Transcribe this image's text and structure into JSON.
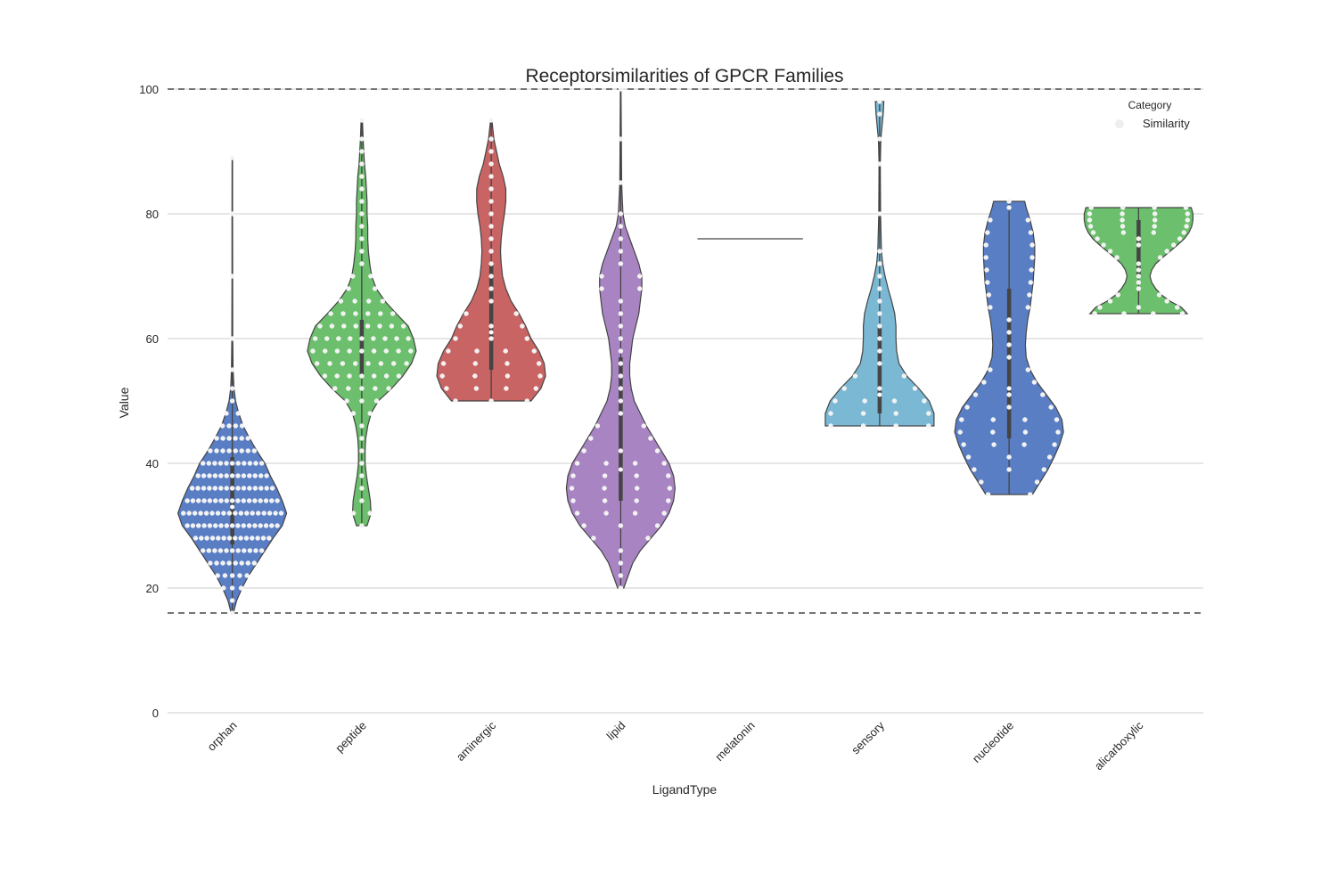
{
  "chart_data": {
    "type": "violin",
    "title": "Receptorsimilarities of GPCR Families",
    "xlabel": "LigandType",
    "ylabel": "Value",
    "ylim": [
      0,
      100
    ],
    "yticks": [
      "0",
      "20",
      "40",
      "60",
      "80",
      "100"
    ],
    "grid": true,
    "reference_lines": [
      100,
      16
    ],
    "legend": {
      "title": "Category",
      "entries": [
        "Similarity"
      ],
      "placement": "top-right"
    },
    "categories": [
      "orphan",
      "peptide",
      "aminergic",
      "lipid",
      "melatonin",
      "sensory",
      "nucleotide",
      "alicarboxylic"
    ],
    "colors": [
      "#4c72b0",
      "#55a868",
      "#c44e52",
      "#8172b2",
      "#4c72b0",
      "#64b5cd",
      "#4c72b0",
      "#55a868"
    ],
    "fill_colors": [
      "#5a7ec4",
      "#6cbf6c",
      "#c96464",
      "#a884c2",
      "#5a7ec4",
      "#7ab8d4",
      "#5a7ec4",
      "#6cbf6c"
    ],
    "series": [
      {
        "category": "orphan",
        "min": 16,
        "q1": 27,
        "median": 33,
        "q3": 41,
        "max": 89,
        "mode": 32,
        "density": [
          [
            16,
            0.02
          ],
          [
            18,
            0.08
          ],
          [
            20,
            0.18
          ],
          [
            22,
            0.3
          ],
          [
            24,
            0.45
          ],
          [
            26,
            0.6
          ],
          [
            28,
            0.75
          ],
          [
            30,
            0.92
          ],
          [
            32,
            1.0
          ],
          [
            34,
            0.92
          ],
          [
            36,
            0.82
          ],
          [
            38,
            0.7
          ],
          [
            40,
            0.6
          ],
          [
            42,
            0.45
          ],
          [
            44,
            0.32
          ],
          [
            46,
            0.2
          ],
          [
            48,
            0.12
          ],
          [
            50,
            0.06
          ],
          [
            52,
            0.03
          ],
          [
            55,
            0.015
          ],
          [
            60,
            0.008
          ],
          [
            70,
            0.006
          ],
          [
            80,
            0.005
          ],
          [
            89,
            0.004
          ]
        ]
      },
      {
        "category": "peptide",
        "min": 30,
        "q1": 54,
        "median": 58,
        "q3": 63,
        "max": 95,
        "mode": 58,
        "density": [
          [
            30,
            0.08
          ],
          [
            32,
            0.14
          ],
          [
            34,
            0.13
          ],
          [
            36,
            0.1
          ],
          [
            38,
            0.07
          ],
          [
            40,
            0.05
          ],
          [
            42,
            0.05
          ],
          [
            44,
            0.06
          ],
          [
            46,
            0.09
          ],
          [
            48,
            0.14
          ],
          [
            50,
            0.25
          ],
          [
            52,
            0.45
          ],
          [
            54,
            0.62
          ],
          [
            56,
            0.75
          ],
          [
            58,
            0.82
          ],
          [
            60,
            0.78
          ],
          [
            62,
            0.7
          ],
          [
            64,
            0.52
          ],
          [
            66,
            0.35
          ],
          [
            68,
            0.22
          ],
          [
            70,
            0.15
          ],
          [
            72,
            0.12
          ],
          [
            74,
            0.1
          ],
          [
            76,
            0.09
          ],
          [
            78,
            0.09
          ],
          [
            80,
            0.08
          ],
          [
            82,
            0.08
          ],
          [
            84,
            0.07
          ],
          [
            86,
            0.06
          ],
          [
            88,
            0.04
          ],
          [
            90,
            0.03
          ],
          [
            92,
            0.02
          ],
          [
            95,
            0.01
          ]
        ]
      },
      {
        "category": "aminergic",
        "min": 50,
        "q1": 55,
        "median": 61,
        "q3": 72,
        "max": 95,
        "mode": 54,
        "density": [
          [
            50,
            0.6
          ],
          [
            52,
            0.75
          ],
          [
            54,
            0.82
          ],
          [
            56,
            0.8
          ],
          [
            58,
            0.72
          ],
          [
            60,
            0.6
          ],
          [
            62,
            0.52
          ],
          [
            64,
            0.42
          ],
          [
            66,
            0.3
          ],
          [
            68,
            0.22
          ],
          [
            70,
            0.17
          ],
          [
            72,
            0.15
          ],
          [
            74,
            0.14
          ],
          [
            76,
            0.15
          ],
          [
            78,
            0.17
          ],
          [
            80,
            0.2
          ],
          [
            82,
            0.22
          ],
          [
            84,
            0.22
          ],
          [
            86,
            0.18
          ],
          [
            88,
            0.12
          ],
          [
            90,
            0.08
          ],
          [
            92,
            0.04
          ],
          [
            95,
            0.01
          ]
        ]
      },
      {
        "category": "lipid",
        "min": 20,
        "q1": 34,
        "median": 39,
        "q3": 57,
        "max": 100,
        "mode": 37,
        "density": [
          [
            20,
            0.02
          ],
          [
            22,
            0.05
          ],
          [
            24,
            0.08
          ],
          [
            26,
            0.13
          ],
          [
            28,
            0.2
          ],
          [
            30,
            0.27
          ],
          [
            32,
            0.32
          ],
          [
            34,
            0.35
          ],
          [
            36,
            0.36
          ],
          [
            38,
            0.35
          ],
          [
            40,
            0.32
          ],
          [
            42,
            0.27
          ],
          [
            44,
            0.22
          ],
          [
            46,
            0.17
          ],
          [
            48,
            0.13
          ],
          [
            50,
            0.09
          ],
          [
            52,
            0.07
          ],
          [
            54,
            0.06
          ],
          [
            56,
            0.06
          ],
          [
            58,
            0.07
          ],
          [
            60,
            0.08
          ],
          [
            62,
            0.1
          ],
          [
            64,
            0.12
          ],
          [
            66,
            0.13
          ],
          [
            68,
            0.14
          ],
          [
            70,
            0.14
          ],
          [
            72,
            0.12
          ],
          [
            74,
            0.09
          ],
          [
            76,
            0.06
          ],
          [
            78,
            0.03
          ],
          [
            80,
            0.015
          ],
          [
            85,
            0.006
          ],
          [
            92,
            0.004
          ],
          [
            100,
            0.002
          ]
        ]
      },
      {
        "category": "melatonin",
        "min": 76,
        "q1": 76,
        "median": 76,
        "q3": 76,
        "max": 76,
        "mode": 76,
        "density": [
          [
            76,
            1.0
          ]
        ]
      },
      {
        "category": "sensory",
        "min": 46,
        "q1": 48,
        "median": 51,
        "q3": 62,
        "max": 98,
        "mode": 49,
        "density": [
          [
            46,
            0.9
          ],
          [
            48,
            0.9
          ],
          [
            50,
            0.82
          ],
          [
            52,
            0.65
          ],
          [
            54,
            0.45
          ],
          [
            56,
            0.32
          ],
          [
            58,
            0.28
          ],
          [
            60,
            0.27
          ],
          [
            62,
            0.27
          ],
          [
            64,
            0.25
          ],
          [
            66,
            0.2
          ],
          [
            68,
            0.14
          ],
          [
            70,
            0.09
          ],
          [
            72,
            0.05
          ],
          [
            74,
            0.03
          ],
          [
            80,
            0.015
          ],
          [
            88,
            0.01
          ],
          [
            92,
            0.02
          ],
          [
            96,
            0.06
          ],
          [
            98,
            0.07
          ]
        ]
      },
      {
        "category": "nucleotide",
        "min": 35,
        "q1": 44,
        "median": 52,
        "q3": 68,
        "max": 82,
        "mode": 46,
        "density": [
          [
            35,
            0.3
          ],
          [
            37,
            0.4
          ],
          [
            39,
            0.5
          ],
          [
            41,
            0.58
          ],
          [
            43,
            0.65
          ],
          [
            45,
            0.7
          ],
          [
            47,
            0.68
          ],
          [
            49,
            0.6
          ],
          [
            51,
            0.48
          ],
          [
            53,
            0.36
          ],
          [
            55,
            0.27
          ],
          [
            57,
            0.22
          ],
          [
            59,
            0.21
          ],
          [
            61,
            0.22
          ],
          [
            63,
            0.24
          ],
          [
            65,
            0.27
          ],
          [
            67,
            0.29
          ],
          [
            69,
            0.31
          ],
          [
            71,
            0.32
          ],
          [
            73,
            0.33
          ],
          [
            75,
            0.33
          ],
          [
            77,
            0.31
          ],
          [
            79,
            0.27
          ],
          [
            81,
            0.22
          ],
          [
            82,
            0.2
          ]
        ]
      },
      {
        "category": "alicarboxylic",
        "min": 64,
        "q1": 70,
        "median": 76,
        "q3": 79,
        "max": 81,
        "mode": 80,
        "density": [
          [
            64,
            0.85
          ],
          [
            65,
            0.75
          ],
          [
            66,
            0.55
          ],
          [
            67,
            0.4
          ],
          [
            68,
            0.3
          ],
          [
            69,
            0.23
          ],
          [
            70,
            0.2
          ],
          [
            71,
            0.23
          ],
          [
            72,
            0.3
          ],
          [
            73,
            0.42
          ],
          [
            74,
            0.55
          ],
          [
            75,
            0.68
          ],
          [
            76,
            0.8
          ],
          [
            77,
            0.88
          ],
          [
            78,
            0.93
          ],
          [
            79,
            0.95
          ],
          [
            80,
            0.95
          ],
          [
            81,
            0.92
          ]
        ]
      }
    ]
  }
}
